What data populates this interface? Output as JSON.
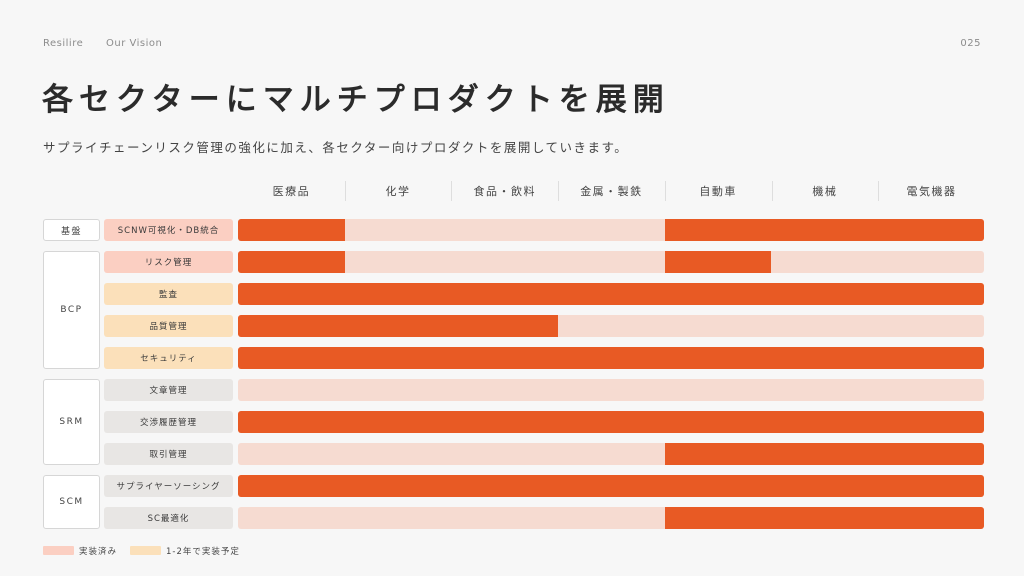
{
  "header": {
    "brand": "Resilire",
    "section": "Our Vision",
    "page_number": "025"
  },
  "title": "各セクターにマルチプロダクトを展開",
  "subtitle": "サプライチェーンリスク管理の強化に加え、各セクター向けプロダクトを展開していきます。",
  "sectors": [
    "医療品",
    "化学",
    "食品・飲料",
    "金属・製鉄",
    "自動車",
    "機械",
    "電気機器"
  ],
  "groups": [
    {
      "label": "基盤",
      "rows": 1
    },
    {
      "label": "BCP",
      "rows": 4
    },
    {
      "label": "SRM",
      "rows": 3
    },
    {
      "label": "SCM",
      "rows": 2
    }
  ],
  "rows": [
    {
      "label": "SCNW可視化・DB統合",
      "status": "done",
      "coverage": [
        [
          0,
          1
        ],
        [
          4,
          7
        ]
      ]
    },
    {
      "label": "リスク管理",
      "status": "done",
      "coverage": [
        [
          0,
          1
        ],
        [
          4,
          5
        ]
      ]
    },
    {
      "label": "監査",
      "status": "plan",
      "coverage": [
        [
          0,
          7
        ]
      ]
    },
    {
      "label": "品質管理",
      "status": "plan",
      "coverage": [
        [
          0,
          3
        ]
      ]
    },
    {
      "label": "セキュリティ",
      "status": "plan",
      "coverage": [
        [
          0,
          7
        ]
      ]
    },
    {
      "label": "文章管理",
      "status": "none",
      "coverage": []
    },
    {
      "label": "交渉履歴管理",
      "status": "none",
      "coverage": [
        [
          0,
          7
        ]
      ]
    },
    {
      "label": "取引管理",
      "status": "none",
      "coverage": [
        [
          4,
          7
        ]
      ]
    },
    {
      "label": "サプライヤーソーシング",
      "status": "none",
      "coverage": [
        [
          0,
          7
        ]
      ]
    },
    {
      "label": "SC最適化",
      "status": "none",
      "coverage": [
        [
          4,
          7
        ]
      ]
    }
  ],
  "legend": [
    {
      "label": "実装済み",
      "color": "#fbcfc2"
    },
    {
      "label": "1-2年で実装予定",
      "color": "#fbe0ba"
    }
  ],
  "colors": {
    "active": "#e85a24",
    "inactive": "#f6dbd1"
  }
}
